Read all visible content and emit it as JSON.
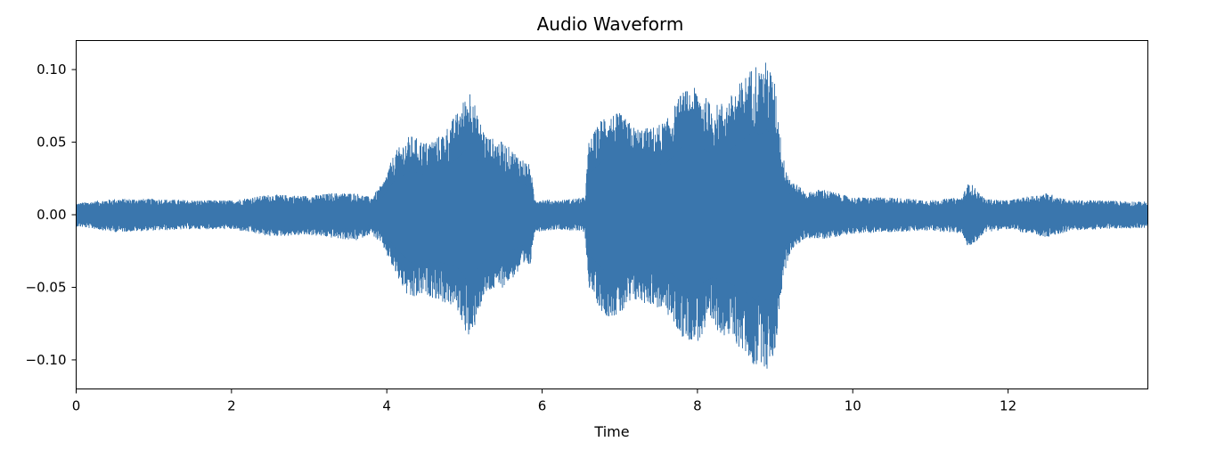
{
  "chart_data": {
    "type": "area",
    "title": "Audio Waveform",
    "xlabel": "Time",
    "ylabel": "",
    "xlim": [
      0,
      13.8
    ],
    "ylim": [
      -0.12,
      0.12
    ],
    "x_ticks": [
      0,
      2,
      4,
      6,
      8,
      10,
      12
    ],
    "x_tick_labels": [
      "0",
      "2",
      "4",
      "6",
      "8",
      "10",
      "12"
    ],
    "y_ticks": [
      0.1,
      0.05,
      0.0,
      -0.05,
      -0.1
    ],
    "y_tick_labels": [
      "0.10",
      "0.05",
      "0.00",
      "−0.05",
      "−0.10"
    ],
    "grid": false,
    "color": "#3a76ad",
    "series": [
      {
        "x": [
          0.0,
          0.5,
          1.0,
          1.5,
          2.0,
          2.5,
          3.0,
          3.3,
          3.6,
          3.8,
          3.95,
          4.1,
          4.3,
          4.5,
          4.7,
          4.9,
          5.05,
          5.1,
          5.15,
          5.3,
          5.5,
          5.7,
          5.85,
          5.9,
          6.2,
          6.55,
          6.6,
          6.8,
          7.0,
          7.2,
          7.4,
          7.6,
          7.8,
          8.0,
          8.2,
          8.4,
          8.6,
          8.75,
          8.8,
          8.9,
          9.0,
          9.1,
          9.2,
          9.4,
          9.6,
          9.8,
          10.0,
          10.5,
          11.0,
          11.4,
          11.5,
          11.7,
          12.0,
          12.5,
          12.8,
          13.2,
          13.8
        ],
        "upper": [
          0.008,
          0.011,
          0.011,
          0.01,
          0.01,
          0.014,
          0.013,
          0.015,
          0.015,
          0.012,
          0.022,
          0.043,
          0.055,
          0.05,
          0.055,
          0.07,
          0.085,
          0.091,
          0.07,
          0.054,
          0.05,
          0.041,
          0.034,
          0.011,
          0.01,
          0.012,
          0.05,
          0.07,
          0.07,
          0.06,
          0.06,
          0.065,
          0.085,
          0.088,
          0.075,
          0.08,
          0.095,
          0.105,
          0.1,
          0.107,
          0.09,
          0.04,
          0.025,
          0.015,
          0.018,
          0.015,
          0.012,
          0.012,
          0.01,
          0.012,
          0.023,
          0.011,
          0.01,
          0.015,
          0.01,
          0.01,
          0.009
        ],
        "lower": [
          -0.008,
          -0.012,
          -0.011,
          -0.01,
          -0.01,
          -0.015,
          -0.014,
          -0.016,
          -0.018,
          -0.013,
          -0.022,
          -0.04,
          -0.06,
          -0.055,
          -0.06,
          -0.065,
          -0.085,
          -0.092,
          -0.07,
          -0.054,
          -0.05,
          -0.04,
          -0.035,
          -0.012,
          -0.01,
          -0.012,
          -0.05,
          -0.07,
          -0.07,
          -0.06,
          -0.062,
          -0.068,
          -0.085,
          -0.088,
          -0.078,
          -0.085,
          -0.095,
          -0.107,
          -0.1,
          -0.108,
          -0.095,
          -0.045,
          -0.025,
          -0.016,
          -0.017,
          -0.015,
          -0.013,
          -0.012,
          -0.011,
          -0.013,
          -0.024,
          -0.012,
          -0.01,
          -0.016,
          -0.011,
          -0.01,
          -0.009
        ]
      }
    ]
  }
}
